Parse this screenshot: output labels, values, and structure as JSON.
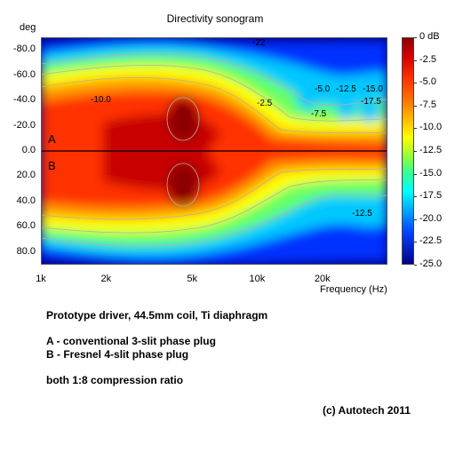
{
  "chart_data": {
    "type": "heatmap",
    "title": "Directivity sonogram",
    "ylabel": "deg",
    "xlabel": "Frequency (Hz)",
    "x_scale": "log",
    "xlim": [
      1000,
      40000
    ],
    "ylim": [
      -90,
      90
    ],
    "y_ticks": [
      "-80.0",
      "-60.0",
      "-40.0",
      "-20.0",
      "0.0",
      "20.0",
      "40.0",
      "60.0",
      "80.0"
    ],
    "x_ticks": [
      "1k",
      "2k",
      "5k",
      "10k",
      "20k"
    ],
    "colorbar": {
      "unit": "dB",
      "range": [
        -25,
        0
      ],
      "ticks": [
        "0 dB",
        "-2.5",
        "-5.0",
        "-7.5",
        "-10.0",
        "-12.5",
        "-15.0",
        "-17.5",
        "-20.0",
        "-22.5",
        "-25.0"
      ]
    },
    "sections": [
      "A",
      "B"
    ],
    "contour_labels": [
      "-10.0",
      "-5.0",
      "-2.5",
      "-7.5",
      "-12.5",
      "-15.0",
      "-17.5",
      "-12.5",
      "-22"
    ]
  },
  "notes": {
    "line1": "Prototype driver, 44.5mm coil, Ti diaphragm",
    "line2": "A - conventional 3-slit phase plug",
    "line3": "B - Fresnel 4-slit phase plug",
    "line4": "both 1:8 compression ratio",
    "copyright": "(c) Autotech 2011"
  }
}
